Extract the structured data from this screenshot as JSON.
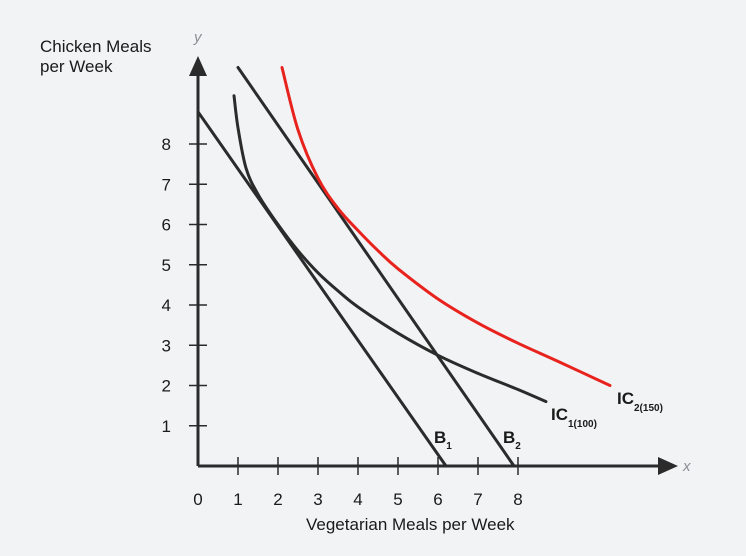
{
  "chart_data": {
    "type": "line",
    "title": "",
    "xlabel": "Vegetarian Meals per Week",
    "ylabel": "Chicken Meals per Week",
    "x_axis_letter": "x",
    "y_axis_letter": "y",
    "xlim": [
      0,
      12
    ],
    "ylim": [
      0,
      10
    ],
    "xticks": [
      0,
      1,
      2,
      3,
      4,
      5,
      6,
      7,
      8
    ],
    "xtick_labels": [
      "0",
      "1",
      "2",
      "3",
      "4",
      "5",
      "6",
      "7",
      "8"
    ],
    "yticks": [
      1,
      2,
      3,
      4,
      5,
      6,
      7,
      8
    ],
    "ytick_labels": [
      "1",
      "2",
      "3",
      "4",
      "5",
      "6",
      "7",
      "8"
    ],
    "grid": false,
    "series": [
      {
        "name": "B1",
        "label_main": "B",
        "label_sub": "1",
        "kind": "budget",
        "color": "#2b2b2b",
        "x": [
          0,
          6.2
        ],
        "y": [
          8.8,
          0
        ]
      },
      {
        "name": "B2",
        "label_main": "B",
        "label_sub": "2",
        "kind": "budget",
        "color": "#2b2b2b",
        "x": [
          1,
          7.9
        ],
        "y": [
          9.9,
          0
        ]
      },
      {
        "name": "IC1(100)",
        "label_main": "IC",
        "label_sub": "1(100)",
        "kind": "indifference",
        "color": "#2b2b2b",
        "x": [
          0.9,
          1.0,
          1.2,
          1.5,
          2.0,
          2.5,
          3.0,
          3.5,
          4.0,
          5.0,
          6.0,
          7.0,
          8.0,
          8.7
        ],
        "y": [
          9.2,
          8.4,
          7.4,
          6.75,
          6.0,
          5.35,
          4.8,
          4.35,
          3.95,
          3.3,
          2.75,
          2.3,
          1.9,
          1.6
        ]
      },
      {
        "name": "IC2(150)",
        "label_main": "IC",
        "label_sub": "2(150)",
        "kind": "indifference",
        "color": "#e8231e",
        "x": [
          2.1,
          2.5,
          3.0,
          3.5,
          4.0,
          4.5,
          5.0,
          6.0,
          7.0,
          8.0,
          9.0,
          10.3
        ],
        "y": [
          9.9,
          8.35,
          7.15,
          6.4,
          5.85,
          5.35,
          4.9,
          4.15,
          3.55,
          3.05,
          2.6,
          2.0
        ]
      }
    ]
  }
}
